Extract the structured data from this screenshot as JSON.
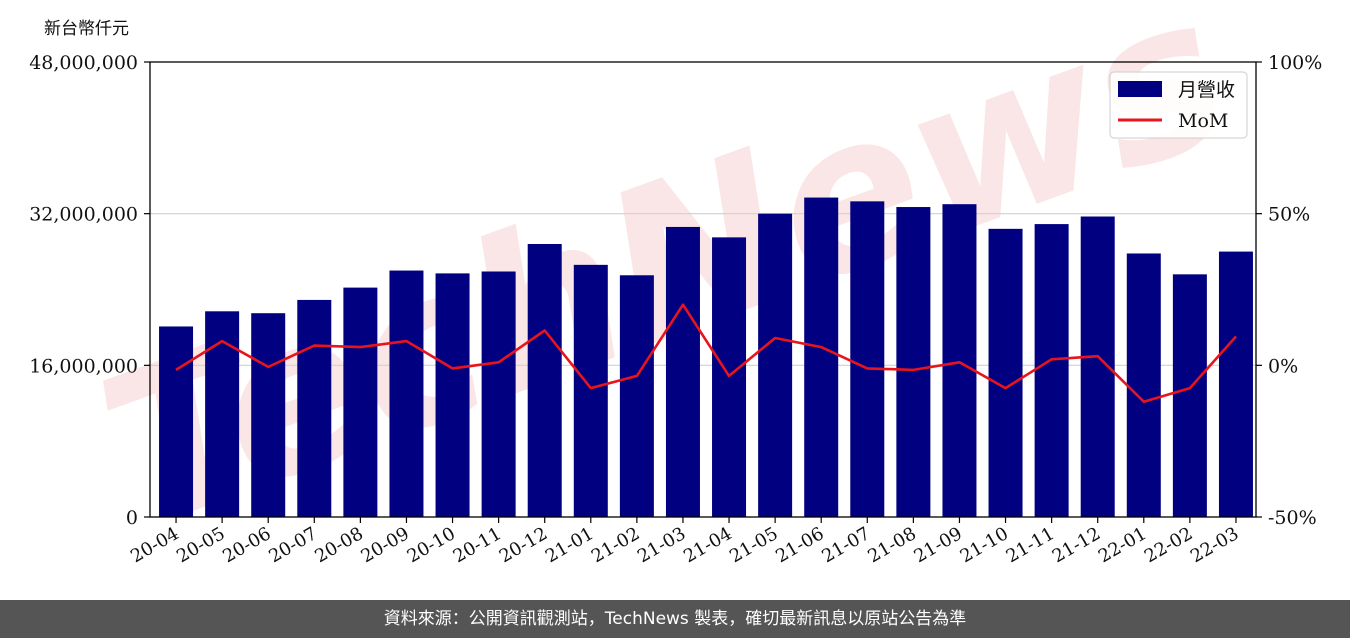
{
  "unit_label": "新台幣仟元",
  "footer_text": "資料來源：公開資訊觀測站，TechNews 製表，確切最新訊息以原站公告為準",
  "watermark_text": "TechNews",
  "colors": {
    "bar": "#000080",
    "line": "#e8141c",
    "grid": "#d0d0d0",
    "footer_bg": "#555555",
    "watermark": "#f0b8b8"
  },
  "chart_data": {
    "type": "bar",
    "categories": [
      "20-04",
      "20-05",
      "20-06",
      "20-07",
      "20-08",
      "20-09",
      "20-10",
      "20-11",
      "20-12",
      "21-01",
      "21-02",
      "21-03",
      "21-04",
      "21-05",
      "21-06",
      "21-07",
      "21-08",
      "21-09",
      "21-10",
      "21-11",
      "21-12",
      "22-01",
      "22-02",
      "22-03"
    ],
    "series": [
      {
        "name": "月營收",
        "type": "bar",
        "axis": "left",
        "values": [
          20100000,
          21700000,
          21500000,
          22900000,
          24200000,
          26000000,
          25700000,
          25900000,
          28800000,
          26600000,
          25500000,
          30600000,
          29500000,
          32000000,
          33700000,
          33300000,
          32700000,
          33000000,
          30400000,
          30900000,
          31700000,
          27800000,
          25600000,
          28000000
        ]
      },
      {
        "name": "MoM",
        "type": "line",
        "axis": "right",
        "values": [
          -1.5,
          8,
          -0.5,
          6.5,
          6,
          8,
          -1,
          1,
          11.5,
          -7.5,
          -3.5,
          20,
          -3.5,
          9,
          6,
          -1,
          -1.5,
          1,
          -7.5,
          2,
          3,
          -12,
          -7.5,
          9.5
        ]
      }
    ],
    "y_left": {
      "lim": [
        0,
        48000000
      ],
      "ticks": [
        0,
        16000000,
        32000000,
        48000000
      ],
      "tick_labels": [
        "0",
        "16,000,000",
        "32,000,000",
        "48,000,000"
      ]
    },
    "y_right": {
      "lim": [
        -50,
        100
      ],
      "ticks": [
        -50,
        0,
        50,
        100
      ],
      "tick_labels": [
        "-50%",
        "0%",
        "50%",
        "100%"
      ]
    },
    "grid": "horizontal",
    "legend_position": "top-right"
  }
}
